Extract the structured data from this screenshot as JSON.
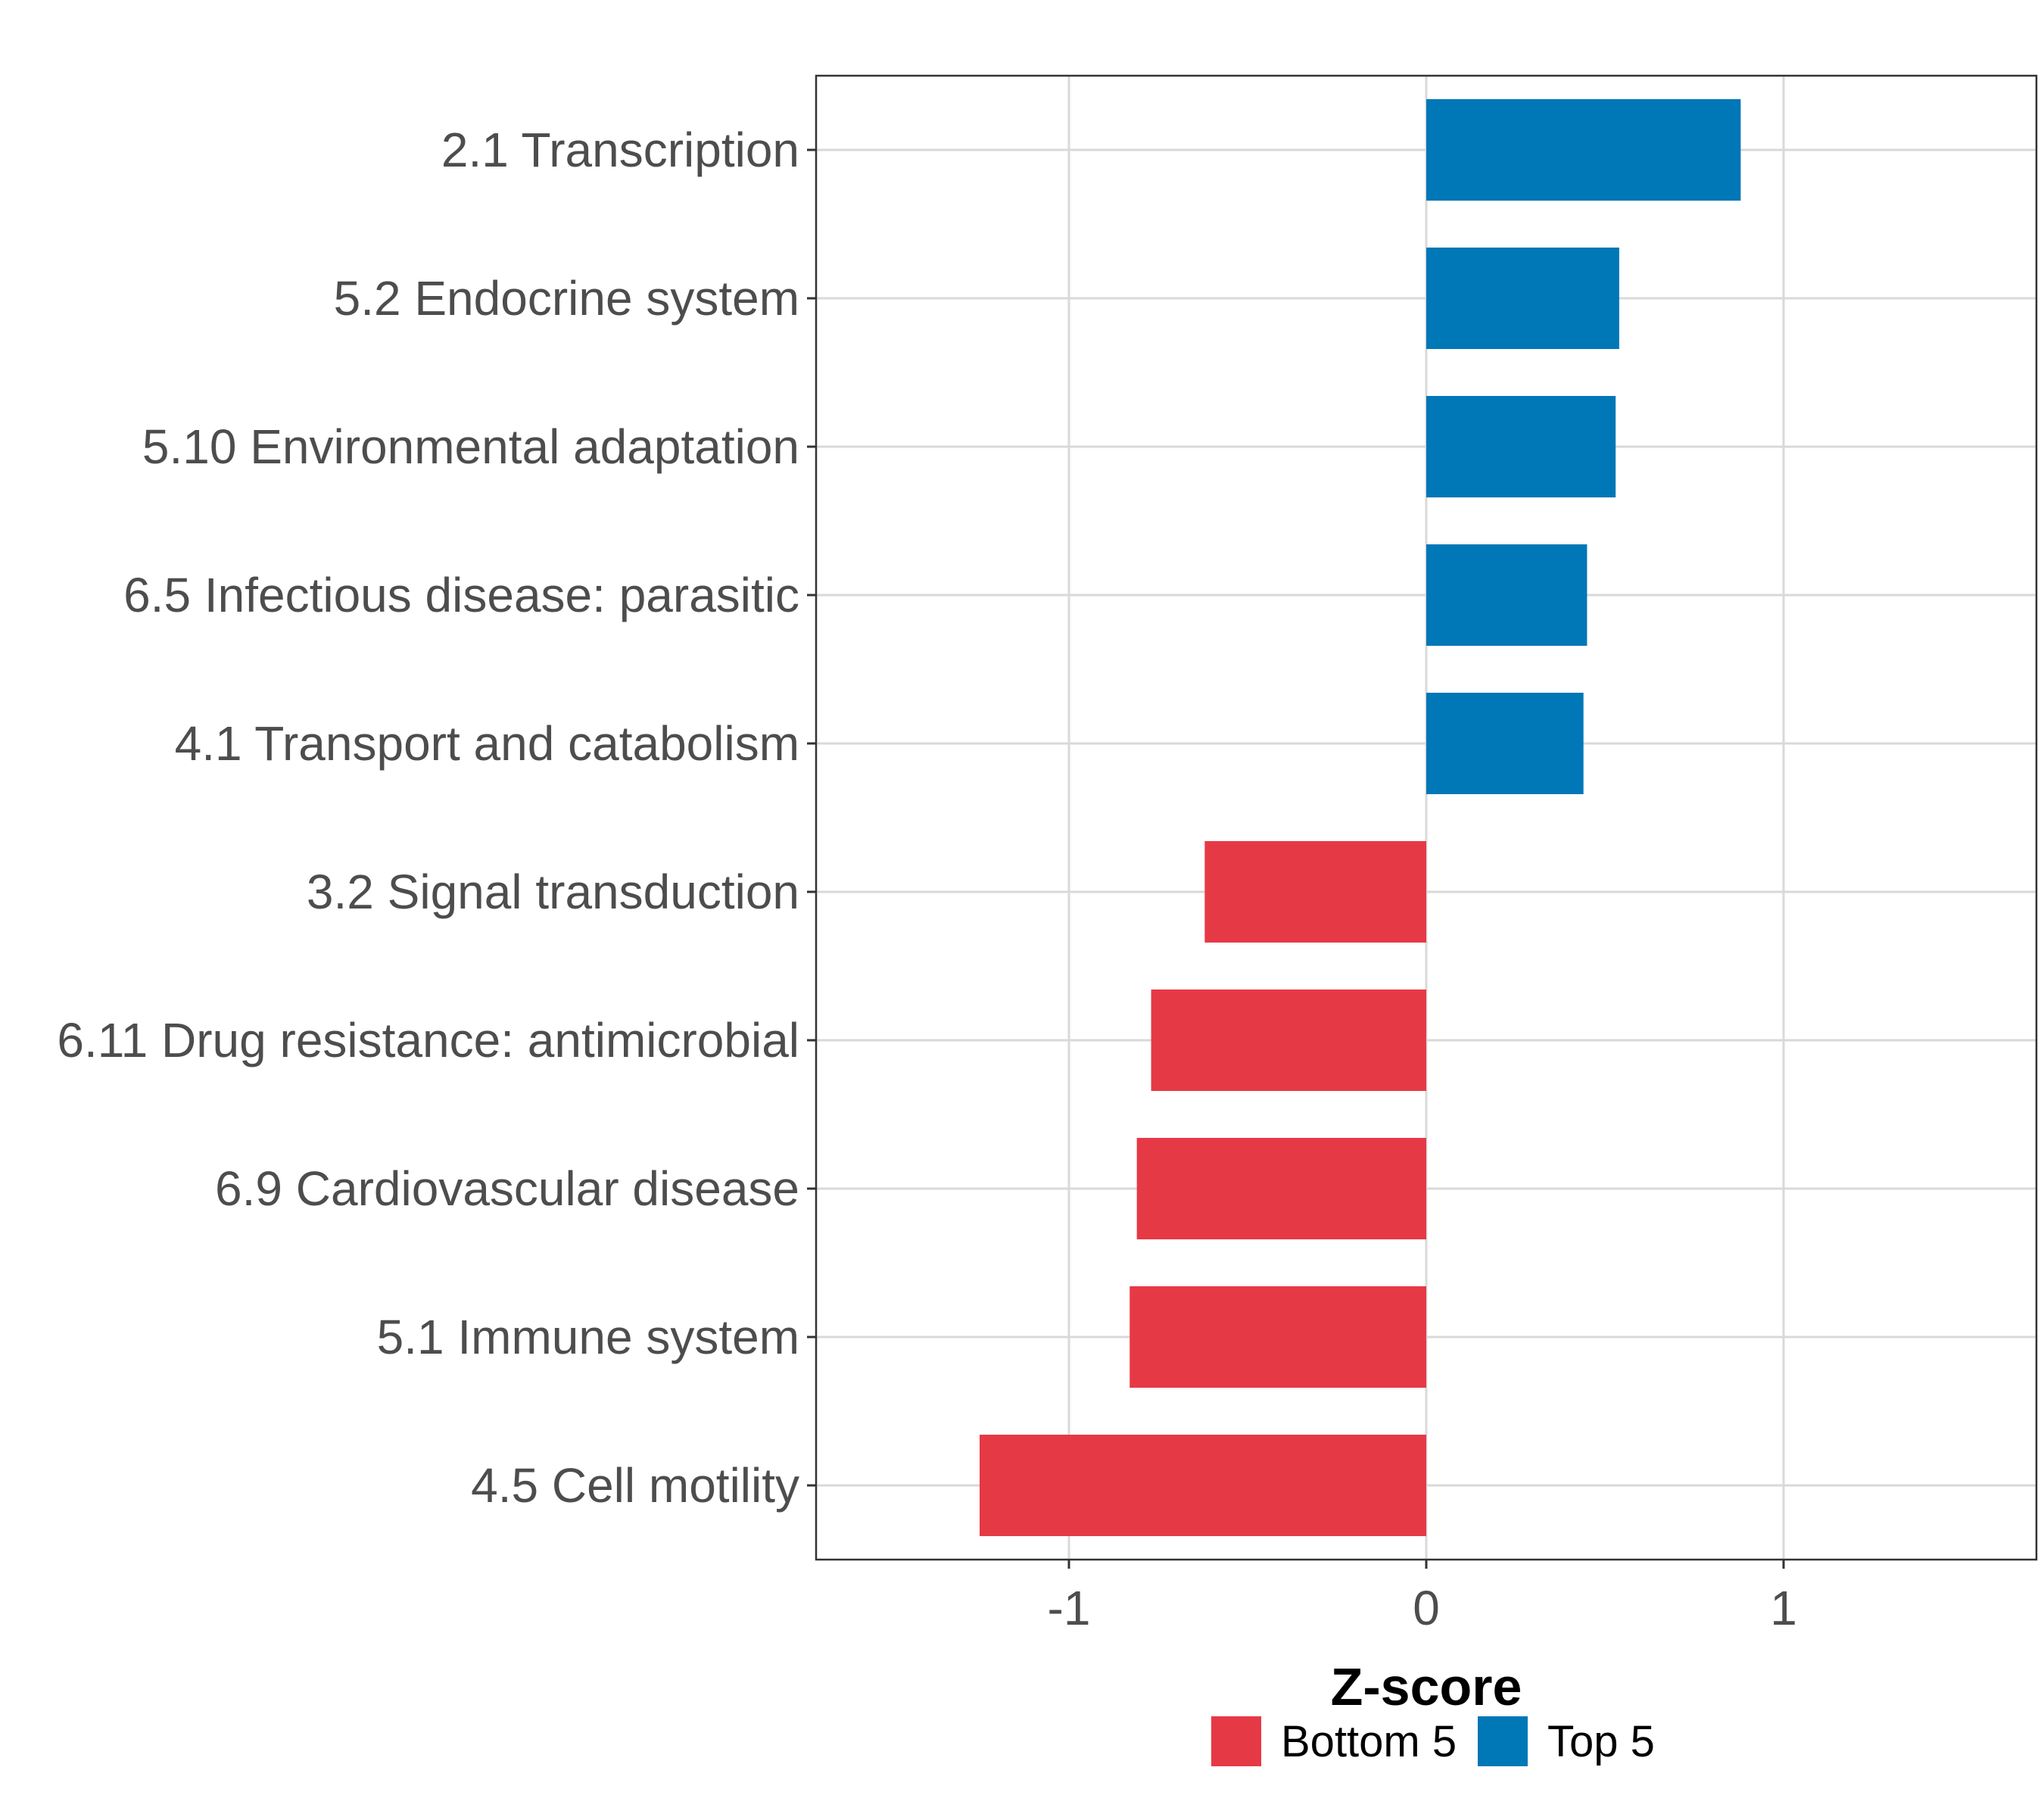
{
  "chart_data": {
    "type": "bar",
    "orientation": "horizontal",
    "title": "",
    "xlabel": "Z-score",
    "ylabel": "",
    "xlim": [
      -1.7,
      1.7
    ],
    "xticks": [
      -1,
      0,
      1
    ],
    "xtick_labels": [
      "-1",
      "0",
      "1"
    ],
    "grid": true,
    "legend_position": "bottom",
    "categories": [
      "2.1 Transcription",
      "5.2 Endocrine system",
      "5.10 Environmental adaptation",
      "6.5 Infectious disease: parasitic",
      "4.1 Transport and catabolism",
      "3.2 Signal transduction",
      "6.11 Drug resistance: antimicrobial",
      "6.9 Cardiovascular disease",
      "5.1 Immune system",
      "4.5 Cell motility"
    ],
    "values": [
      0.88,
      0.54,
      0.53,
      0.45,
      0.44,
      -0.62,
      -0.77,
      -0.81,
      -0.83,
      -1.25
    ],
    "groups": [
      "Top 5",
      "Top 5",
      "Top 5",
      "Top 5",
      "Top 5",
      "Bottom 5",
      "Bottom 5",
      "Bottom 5",
      "Bottom 5",
      "Bottom 5"
    ],
    "legend": [
      {
        "name": "Bottom 5",
        "color": "#E63946"
      },
      {
        "name": "Top 5",
        "color": "#0077B6"
      }
    ],
    "colors": {
      "Bottom 5": "#E63946",
      "Top 5": "#0077B6"
    }
  }
}
